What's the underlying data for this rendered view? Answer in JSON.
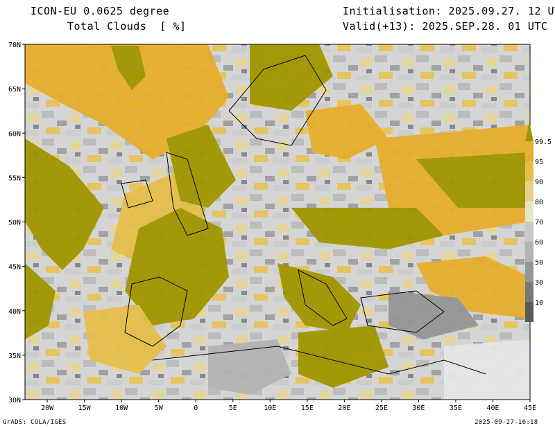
{
  "header": {
    "model": "ICON-EU 0.0625 degree",
    "field": "Total Clouds  [ %]",
    "init": "Initialisation: 2025.09.27. 12 UTC",
    "valid": "Valid(+13): 2025.SEP.28. 01 UTC"
  },
  "axes": {
    "lat_labels": [
      "70N",
      "65N",
      "60N",
      "55N",
      "50N",
      "45N",
      "40N",
      "35N",
      "30N"
    ],
    "lon_labels": [
      "20W",
      "15W",
      "10W",
      "5W",
      "0",
      "5E",
      "10E",
      "15E",
      "20E",
      "25E",
      "30E",
      "35E",
      "40E",
      "45E"
    ],
    "lat_range": [
      30,
      70
    ],
    "lon_range": [
      -23,
      45
    ]
  },
  "legend": {
    "labels": [
      "99.5",
      "95",
      "90",
      "80",
      "70",
      "60",
      "50",
      "30",
      "10"
    ],
    "colors": [
      "#a09600",
      "#e6af2d",
      "#e6be4b",
      "#e6d28c",
      "#e6e6c8",
      "#c8c8c8",
      "#b4b4b4",
      "#969696",
      "#787878",
      "#5a5a5a"
    ]
  },
  "footer": {
    "left": "GrADS: COLA/IGES",
    "right": "2025-09-27-16:18"
  }
}
